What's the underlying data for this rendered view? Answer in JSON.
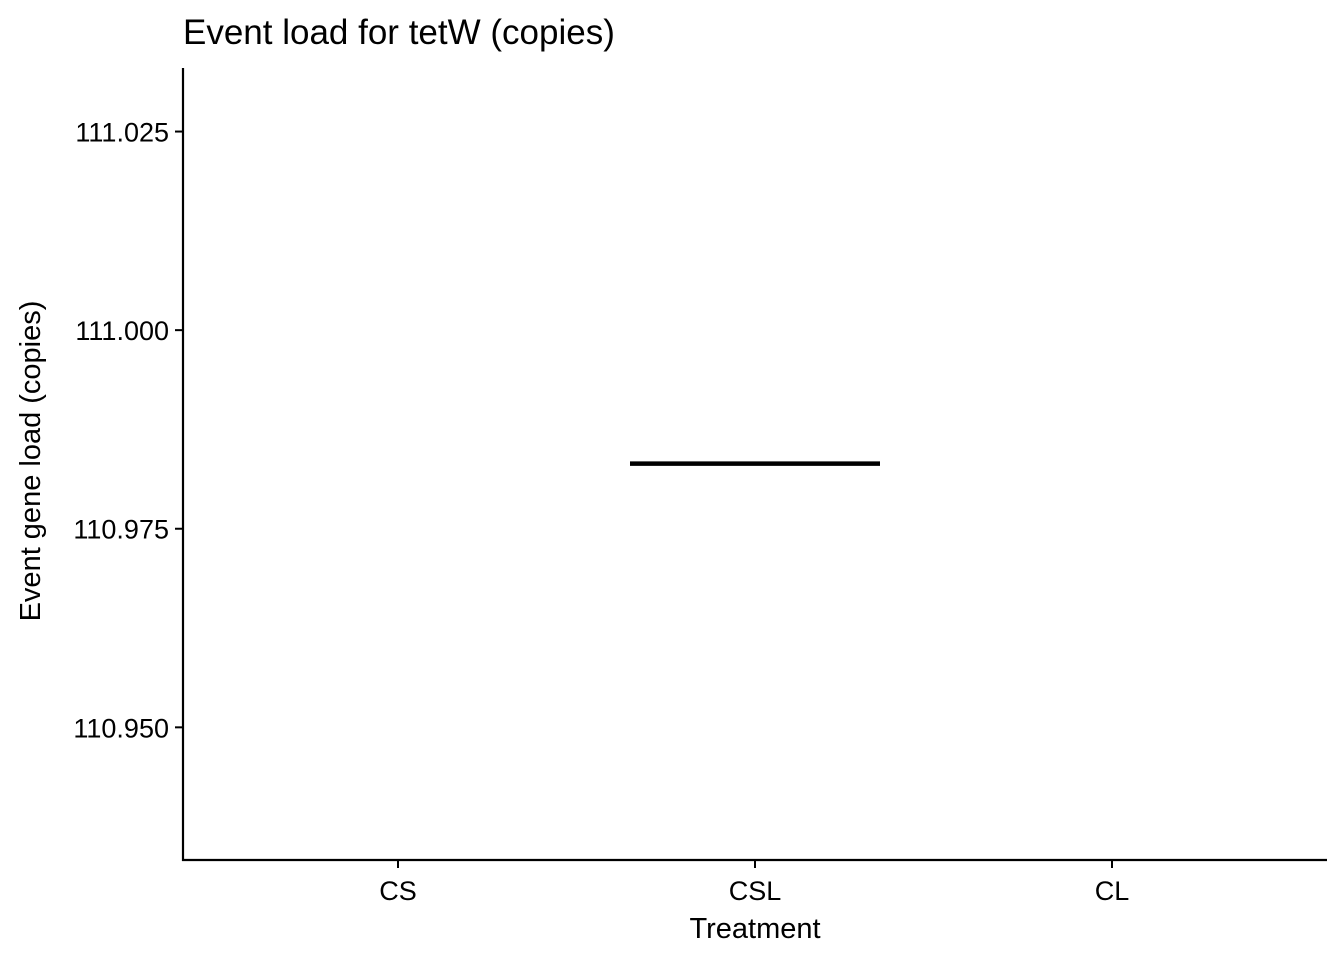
{
  "chart_data": {
    "type": "box",
    "title": "Event load for tetW (copies)",
    "xlabel": "Treatment",
    "ylabel": "Event gene load (copies)",
    "categories": [
      "CS",
      "CSL",
      "CL"
    ],
    "y_ticks": [
      110.95,
      110.975,
      111.0,
      111.025
    ],
    "y_tick_labels": [
      "110.950",
      "110.975",
      "111.000",
      "111.025"
    ],
    "ylim": [
      110.9333,
      111.033
    ],
    "grid": false,
    "legend": "none",
    "boxes": [
      {
        "category": "CSL",
        "min": 110.9832,
        "q1": 110.9832,
        "median": 110.9832,
        "q3": 110.9832,
        "max": 110.9832
      }
    ]
  }
}
